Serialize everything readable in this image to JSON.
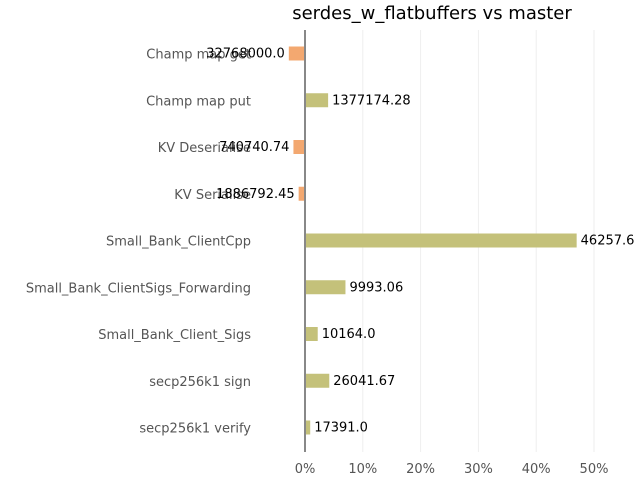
{
  "chart_data": {
    "type": "bar",
    "orientation": "horizontal",
    "title": "serdes_w_flatbuffers vs master",
    "xlabel": "",
    "ylabel": "",
    "xlim": [
      -0.055,
      0.575
    ],
    "xticks": [
      0,
      0.1,
      0.2,
      0.3,
      0.4,
      0.5
    ],
    "xtick_labels": [
      "0%",
      "10%",
      "20%",
      "30%",
      "40%",
      "50%"
    ],
    "grid": "vertical",
    "colors": {
      "positive": "#c4c17a",
      "negative": "#f3a870"
    },
    "categories": [
      "Champ map get",
      "Champ map put",
      "KV Deserialise",
      "KV Serialise",
      "Small_Bank_ClientCpp",
      "Small_Bank_ClientSigs_Forwarding",
      "Small_Bank_Client_Sigs",
      "secp256k1 sign",
      "secp256k1 verify"
    ],
    "values": [
      -0.028,
      0.04,
      -0.02,
      -0.011,
      0.47,
      0.07,
      0.022,
      0.042,
      0.009
    ],
    "data_labels": [
      "32768000.0",
      "1377174.28",
      "740740.74",
      "1886792.45",
      "46257.6",
      "9993.06",
      "10164.0",
      "26041.67",
      "17391.0"
    ]
  }
}
